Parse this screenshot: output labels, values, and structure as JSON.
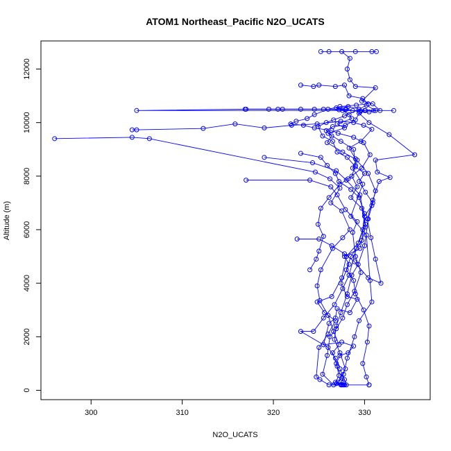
{
  "chart_data": {
    "type": "scatter",
    "title": "ATOM1 Northeast_Pacific N2O_UCATS",
    "xlabel": "N2O_UCATS",
    "ylabel": "Altitude (m)",
    "xlim": [
      294.5,
      337.2
    ],
    "ylim": [
      -350,
      13050
    ],
    "xticks": [
      300,
      310,
      320,
      330
    ],
    "yticks": [
      0,
      2000,
      4000,
      6000,
      8000,
      10000,
      12000
    ],
    "grid": false,
    "legend": "none",
    "color": "#0000ff",
    "series": [
      {
        "marker": "open-circle",
        "connected": true,
        "points": [
          [
            327.8,
            200
          ],
          [
            326.8,
            300
          ],
          [
            327.2,
            550
          ],
          [
            326.9,
            1000
          ],
          [
            327.3,
            1300
          ],
          [
            328.2,
            1400
          ],
          [
            328.8,
            1650
          ],
          [
            327.5,
            1800
          ],
          [
            325.5,
            1700
          ],
          [
            326.1,
            2500
          ],
          [
            326.8,
            2700
          ],
          [
            327.0,
            3050
          ],
          [
            328.4,
            2900
          ],
          [
            329.2,
            3400
          ],
          [
            328.1,
            3500
          ],
          [
            327.4,
            4000
          ],
          [
            328.3,
            4700
          ],
          [
            327.8,
            5000
          ],
          [
            329.5,
            5300
          ],
          [
            330.1,
            6100
          ],
          [
            329.7,
            6800
          ],
          [
            328.5,
            7200
          ],
          [
            329.2,
            7600
          ],
          [
            328.6,
            8000
          ],
          [
            329.0,
            8400
          ],
          [
            328.8,
            9000
          ],
          [
            327.4,
            9300
          ],
          [
            326.0,
            9600
          ],
          [
            327.8,
            9800
          ],
          [
            327.0,
            9950
          ],
          [
            328.6,
            10150
          ],
          [
            328.3,
            10300
          ],
          [
            327.6,
            10450
          ],
          [
            326.9,
            10550
          ],
          [
            328.2,
            10600
          ],
          [
            330.1,
            10450
          ],
          [
            331.0,
            10450
          ],
          [
            305.0,
            10450
          ],
          [
            317.0,
            10500
          ],
          [
            328.0,
            10500
          ],
          [
            329.5,
            10400
          ],
          [
            329.0,
            10100
          ],
          [
            327.9,
            9900
          ],
          [
            326.5,
            9850
          ],
          [
            325.8,
            9700
          ],
          [
            326.4,
            9500
          ],
          [
            325.9,
            9250
          ],
          [
            327.6,
            8900
          ],
          [
            329.2,
            8600
          ],
          [
            328.7,
            8300
          ],
          [
            329.8,
            7700
          ],
          [
            328.5,
            6500
          ],
          [
            330.2,
            5800
          ],
          [
            330.6,
            4100
          ],
          [
            330.8,
            3300
          ],
          [
            329.4,
            2600
          ],
          [
            328.9,
            2000
          ],
          [
            328.1,
            1200
          ],
          [
            327.7,
            600
          ],
          [
            327.4,
            200
          ],
          [
            330.5,
            200
          ]
        ]
      },
      {
        "marker": "open-circle",
        "connected": true,
        "points": [
          [
            296.0,
            9400
          ],
          [
            304.5,
            9450
          ],
          [
            306.4,
            9400
          ],
          [
            324.6,
            8150
          ],
          [
            326.2,
            7900
          ],
          [
            327.3,
            7550
          ],
          [
            326.3,
            7000
          ],
          [
            327.5,
            6700
          ],
          [
            328.4,
            6000
          ],
          [
            327.6,
            5700
          ],
          [
            326.5,
            5300
          ],
          [
            325.2,
            4500
          ],
          [
            324.8,
            3900
          ],
          [
            325.1,
            3350
          ],
          [
            326.0,
            2800
          ],
          [
            326.6,
            2200
          ],
          [
            327.2,
            1700
          ],
          [
            326.5,
            1400
          ],
          [
            327.0,
            900
          ],
          [
            327.5,
            450
          ],
          [
            326.9,
            250
          ],
          [
            327.7,
            300
          ]
        ]
      },
      {
        "marker": "open-circle",
        "connected": true,
        "points": [
          [
            304.5,
            9730
          ],
          [
            305.0,
            9730
          ],
          [
            312.3,
            9780
          ],
          [
            315.8,
            9950
          ],
          [
            319.0,
            9800
          ],
          [
            322.0,
            9900
          ],
          [
            324.8,
            9950
          ],
          [
            327.4,
            10050
          ],
          [
            328.8,
            10000
          ],
          [
            329.9,
            9900
          ],
          [
            330.8,
            9750
          ],
          [
            329.6,
            9300
          ],
          [
            328.3,
            9050
          ],
          [
            329.0,
            8650
          ],
          [
            330.4,
            8100
          ],
          [
            331.2,
            7450
          ],
          [
            330.8,
            6900
          ],
          [
            330.0,
            6500
          ],
          [
            329.7,
            5600
          ],
          [
            328.5,
            5000
          ],
          [
            328.0,
            4500
          ],
          [
            328.8,
            4100
          ],
          [
            329.0,
            3600
          ],
          [
            329.9,
            3000
          ],
          [
            330.5,
            2400
          ],
          [
            330.3,
            1800
          ],
          [
            329.8,
            1000
          ],
          [
            330.2,
            500
          ],
          [
            330.5,
            200
          ]
        ]
      },
      {
        "marker": "open-circle",
        "connected": true,
        "points": [
          [
            319.0,
            8700
          ],
          [
            324.3,
            8500
          ],
          [
            326.9,
            8200
          ],
          [
            328.0,
            7850
          ],
          [
            329.5,
            7300
          ],
          [
            330.1,
            6200
          ],
          [
            329.3,
            5500
          ],
          [
            328.0,
            5000
          ],
          [
            327.5,
            4200
          ],
          [
            326.4,
            3500
          ],
          [
            324.8,
            3300
          ],
          [
            325.6,
            2900
          ],
          [
            326.8,
            2600
          ],
          [
            326.0,
            2100
          ],
          [
            325.0,
            1600
          ],
          [
            324.7,
            500
          ],
          [
            325.1,
            400
          ],
          [
            326.1,
            200
          ],
          [
            327.5,
            200
          ]
        ]
      },
      {
        "marker": "open-circle",
        "connected": true,
        "points": [
          [
            317.0,
            7850
          ],
          [
            324.0,
            7850
          ],
          [
            326.3,
            7600
          ],
          [
            327.0,
            7300
          ],
          [
            327.9,
            6750
          ],
          [
            329.2,
            6300
          ],
          [
            328.7,
            5900
          ],
          [
            329.0,
            5000
          ],
          [
            329.6,
            4400
          ],
          [
            328.9,
            3700
          ],
          [
            328.1,
            3200
          ],
          [
            327.6,
            2700
          ],
          [
            326.9,
            2300
          ],
          [
            326.2,
            2000
          ],
          [
            325.9,
            1300
          ],
          [
            325.4,
            600
          ],
          [
            326.6,
            200
          ],
          [
            327.7,
            200
          ]
        ]
      },
      {
        "marker": "open-circle",
        "connected": true,
        "points": [
          [
            322.6,
            5650
          ],
          [
            325.0,
            5650
          ],
          [
            326.4,
            5400
          ],
          [
            327.8,
            5100
          ],
          [
            328.9,
            4800
          ],
          [
            330.4,
            4200
          ],
          [
            331.8,
            4000
          ],
          [
            331.2,
            4900
          ],
          [
            330.7,
            5700
          ],
          [
            330.3,
            6400
          ],
          [
            330.9,
            7100
          ],
          [
            331.6,
            7800
          ],
          [
            332.8,
            7950
          ],
          [
            331.4,
            8150
          ],
          [
            331.2,
            8600
          ],
          [
            335.5,
            8800
          ],
          [
            332.7,
            9550
          ],
          [
            330.5,
            10000
          ],
          [
            329.4,
            10350
          ],
          [
            330.0,
            10450
          ],
          [
            333.2,
            10450
          ],
          [
            331.7,
            10450
          ],
          [
            330.9,
            10700
          ],
          [
            329.7,
            10800
          ],
          [
            331.2,
            11300
          ],
          [
            329.0,
            11350
          ],
          [
            328.4,
            11600
          ],
          [
            328.1,
            12000
          ],
          [
            328.4,
            12400
          ],
          [
            327.5,
            12650
          ],
          [
            325.2,
            12650
          ],
          [
            326.1,
            12650
          ],
          [
            329.0,
            12650
          ],
          [
            330.8,
            12650
          ],
          [
            331.3,
            12650
          ]
        ]
      },
      {
        "marker": "open-circle",
        "connected": true,
        "points": [
          [
            323.0,
            8850
          ],
          [
            325.2,
            8700
          ],
          [
            325.9,
            8400
          ],
          [
            326.8,
            8100
          ],
          [
            327.2,
            7800
          ],
          [
            328.5,
            7500
          ],
          [
            329.4,
            7200
          ],
          [
            330.0,
            6600
          ],
          [
            329.8,
            6000
          ],
          [
            329.1,
            5300
          ],
          [
            328.3,
            4300
          ],
          [
            327.6,
            3800
          ],
          [
            326.7,
            3200
          ],
          [
            325.5,
            2700
          ],
          [
            324.4,
            2200
          ],
          [
            323.0,
            2200
          ],
          [
            326.0,
            1600
          ],
          [
            326.8,
            1200
          ],
          [
            327.3,
            800
          ],
          [
            327.8,
            400
          ],
          [
            328.0,
            200
          ]
        ]
      },
      {
        "marker": "open-circle",
        "connected": true,
        "points": [
          [
            323.0,
            11400
          ],
          [
            324.4,
            11350
          ],
          [
            325.0,
            11400
          ],
          [
            326.8,
            11350
          ],
          [
            327.8,
            11400
          ],
          [
            328.3,
            11000
          ],
          [
            329.8,
            10900
          ],
          [
            330.4,
            10700
          ],
          [
            329.1,
            10650
          ],
          [
            327.3,
            10600
          ],
          [
            326.0,
            10500
          ],
          [
            324.5,
            10300
          ],
          [
            323.7,
            10150
          ],
          [
            322.5,
            10050
          ],
          [
            321.9,
            9950
          ],
          [
            323.3,
            9900
          ],
          [
            324.5,
            9800
          ],
          [
            326.4,
            9700
          ],
          [
            327.1,
            9600
          ],
          [
            328.8,
            9450
          ],
          [
            329.9,
            9250
          ],
          [
            330.6,
            8800
          ],
          [
            329.7,
            8300
          ],
          [
            328.2,
            7900
          ],
          [
            327.3,
            7700
          ],
          [
            326.1,
            7200
          ],
          [
            325.2,
            6800
          ],
          [
            324.9,
            6200
          ],
          [
            325.5,
            5750
          ],
          [
            325.0,
            5200
          ],
          [
            324.7,
            4900
          ],
          [
            324.0,
            4500
          ]
        ]
      },
      {
        "marker": "open-circle",
        "connected": true,
        "points": [
          [
            316.9,
            10500
          ],
          [
            319.5,
            10500
          ],
          [
            320.5,
            10500
          ],
          [
            321.0,
            10500
          ],
          [
            323.0,
            10500
          ],
          [
            324.5,
            10500
          ],
          [
            325.5,
            10500
          ],
          [
            327.2,
            10480
          ],
          [
            327.9,
            10480
          ],
          [
            328.7,
            10450
          ],
          [
            329.5,
            10400
          ],
          [
            330.5,
            10400
          ],
          [
            331.2,
            10450
          ],
          [
            330.2,
            10650
          ],
          [
            329.4,
            10500
          ],
          [
            327.8,
            10250
          ],
          [
            326.6,
            10100
          ],
          [
            325.8,
            10000
          ],
          [
            324.9,
            9850
          ],
          [
            325.4,
            9500
          ],
          [
            326.5,
            9300
          ],
          [
            327.0,
            8900
          ],
          [
            328.1,
            8700
          ],
          [
            329.0,
            8350
          ],
          [
            330.0,
            8100
          ],
          [
            329.4,
            7800
          ],
          [
            330.1,
            7400
          ],
          [
            330.9,
            7000
          ],
          [
            330.4,
            6400
          ],
          [
            330.0,
            5400
          ],
          [
            329.3,
            4700
          ],
          [
            328.6,
            4300
          ],
          [
            328.1,
            3600
          ],
          [
            327.4,
            2900
          ],
          [
            326.9,
            2400
          ],
          [
            326.7,
            1900
          ],
          [
            327.3,
            1400
          ],
          [
            327.9,
            800
          ],
          [
            327.1,
            300
          ],
          [
            327.6,
            200
          ]
        ]
      }
    ]
  }
}
